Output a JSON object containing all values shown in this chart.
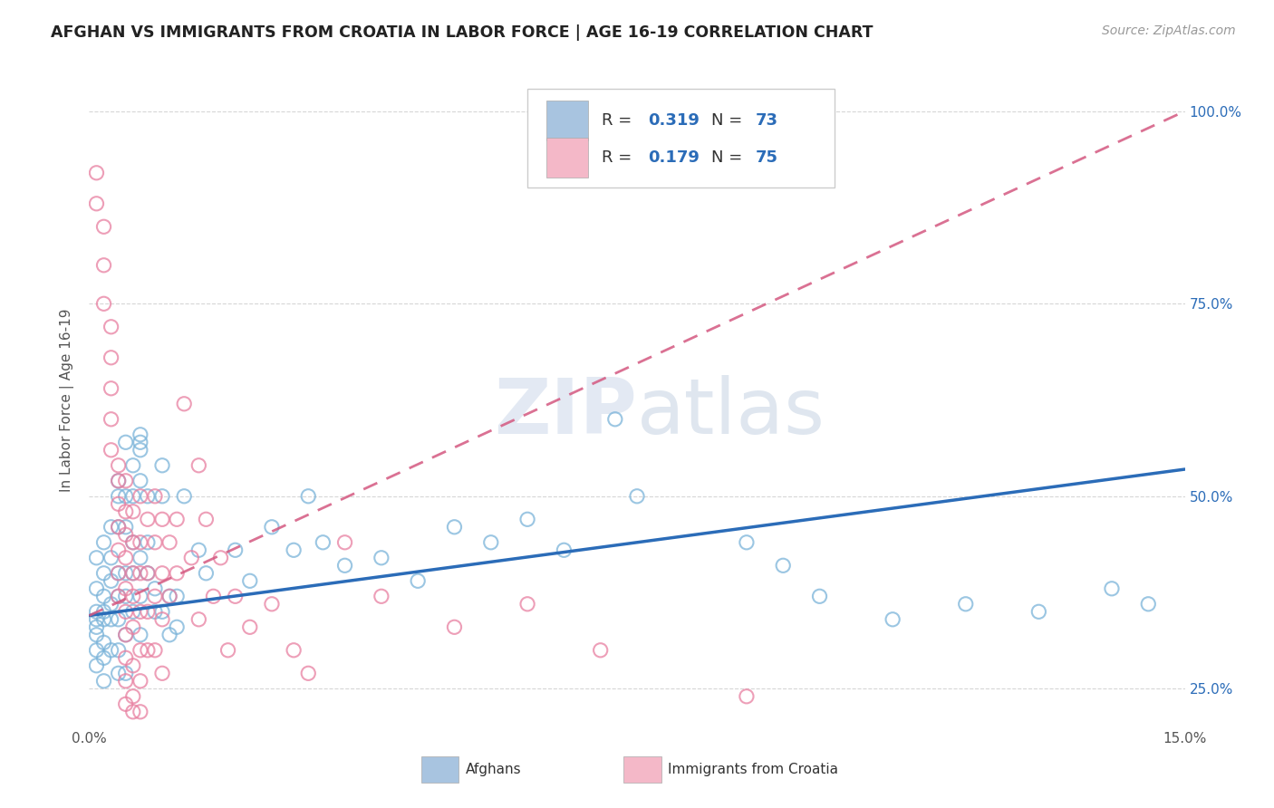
{
  "title": "AFGHAN VS IMMIGRANTS FROM CROATIA IN LABOR FORCE | AGE 16-19 CORRELATION CHART",
  "source": "Source: ZipAtlas.com",
  "ylabel": "In Labor Force | Age 16-19",
  "xlim": [
    0.0,
    0.15
  ],
  "ylim": [
    0.2,
    1.05
  ],
  "yticks": [
    0.25,
    0.5,
    0.75,
    1.0
  ],
  "ytick_labels_right": [
    "25.0%",
    "50.0%",
    "75.0%",
    "100.0%"
  ],
  "series_afghan": {
    "name": "Afghans",
    "marker_color": "#7ab3d9",
    "line_color": "#2b6cb8",
    "trend_x": [
      0.0,
      0.15
    ],
    "trend_y": [
      0.345,
      0.535
    ]
  },
  "series_croatia": {
    "name": "Immigrants from Croatia",
    "marker_color": "#e87fa0",
    "line_color": "#d45880",
    "trend_x": [
      0.0,
      0.15
    ],
    "trend_y": [
      0.345,
      1.0
    ]
  },
  "legend_box_color_afghan": "#a8c4e0",
  "legend_box_color_croatia": "#f4b8c8",
  "legend_text_color": "#2b6cb8",
  "background_color": "#ffffff",
  "grid_color": "#cccccc",
  "scatter_afghan": [
    [
      0.001,
      0.42
    ],
    [
      0.001,
      0.38
    ],
    [
      0.001,
      0.34
    ],
    [
      0.001,
      0.32
    ],
    [
      0.001,
      0.3
    ],
    [
      0.001,
      0.28
    ],
    [
      0.001,
      0.35
    ],
    [
      0.001,
      0.33
    ],
    [
      0.002,
      0.44
    ],
    [
      0.002,
      0.4
    ],
    [
      0.002,
      0.37
    ],
    [
      0.002,
      0.34
    ],
    [
      0.002,
      0.31
    ],
    [
      0.002,
      0.29
    ],
    [
      0.002,
      0.26
    ],
    [
      0.002,
      0.35
    ],
    [
      0.003,
      0.46
    ],
    [
      0.003,
      0.42
    ],
    [
      0.003,
      0.39
    ],
    [
      0.003,
      0.36
    ],
    [
      0.003,
      0.34
    ],
    [
      0.003,
      0.3
    ],
    [
      0.004,
      0.52
    ],
    [
      0.004,
      0.5
    ],
    [
      0.004,
      0.46
    ],
    [
      0.004,
      0.4
    ],
    [
      0.004,
      0.37
    ],
    [
      0.004,
      0.34
    ],
    [
      0.004,
      0.3
    ],
    [
      0.004,
      0.27
    ],
    [
      0.005,
      0.57
    ],
    [
      0.005,
      0.5
    ],
    [
      0.005,
      0.46
    ],
    [
      0.005,
      0.4
    ],
    [
      0.005,
      0.37
    ],
    [
      0.005,
      0.32
    ],
    [
      0.005,
      0.27
    ],
    [
      0.006,
      0.54
    ],
    [
      0.006,
      0.5
    ],
    [
      0.006,
      0.44
    ],
    [
      0.006,
      0.4
    ],
    [
      0.006,
      0.35
    ],
    [
      0.007,
      0.57
    ],
    [
      0.007,
      0.52
    ],
    [
      0.007,
      0.58
    ],
    [
      0.007,
      0.56
    ],
    [
      0.007,
      0.42
    ],
    [
      0.007,
      0.37
    ],
    [
      0.007,
      0.32
    ],
    [
      0.008,
      0.5
    ],
    [
      0.008,
      0.44
    ],
    [
      0.008,
      0.4
    ],
    [
      0.009,
      0.38
    ],
    [
      0.009,
      0.35
    ],
    [
      0.01,
      0.54
    ],
    [
      0.01,
      0.5
    ],
    [
      0.01,
      0.35
    ],
    [
      0.011,
      0.37
    ],
    [
      0.011,
      0.32
    ],
    [
      0.012,
      0.33
    ],
    [
      0.012,
      0.37
    ],
    [
      0.013,
      0.5
    ],
    [
      0.015,
      0.43
    ],
    [
      0.016,
      0.4
    ],
    [
      0.02,
      0.43
    ],
    [
      0.022,
      0.39
    ],
    [
      0.025,
      0.46
    ],
    [
      0.028,
      0.43
    ],
    [
      0.03,
      0.5
    ],
    [
      0.032,
      0.44
    ],
    [
      0.035,
      0.41
    ],
    [
      0.04,
      0.42
    ],
    [
      0.045,
      0.39
    ],
    [
      0.05,
      0.46
    ],
    [
      0.055,
      0.44
    ],
    [
      0.06,
      0.47
    ],
    [
      0.065,
      0.43
    ],
    [
      0.072,
      0.6
    ],
    [
      0.075,
      0.5
    ],
    [
      0.09,
      0.44
    ],
    [
      0.095,
      0.41
    ],
    [
      0.1,
      0.37
    ],
    [
      0.11,
      0.34
    ],
    [
      0.12,
      0.36
    ],
    [
      0.13,
      0.35
    ],
    [
      0.14,
      0.38
    ],
    [
      0.145,
      0.36
    ]
  ],
  "scatter_croatia": [
    [
      0.001,
      0.92
    ],
    [
      0.001,
      0.88
    ],
    [
      0.002,
      0.85
    ],
    [
      0.002,
      0.8
    ],
    [
      0.002,
      0.75
    ],
    [
      0.003,
      0.72
    ],
    [
      0.003,
      0.68
    ],
    [
      0.003,
      0.64
    ],
    [
      0.003,
      0.6
    ],
    [
      0.003,
      0.56
    ],
    [
      0.004,
      0.54
    ],
    [
      0.004,
      0.52
    ],
    [
      0.004,
      0.49
    ],
    [
      0.004,
      0.46
    ],
    [
      0.004,
      0.43
    ],
    [
      0.004,
      0.4
    ],
    [
      0.004,
      0.37
    ],
    [
      0.005,
      0.52
    ],
    [
      0.005,
      0.48
    ],
    [
      0.005,
      0.45
    ],
    [
      0.005,
      0.42
    ],
    [
      0.005,
      0.38
    ],
    [
      0.005,
      0.35
    ],
    [
      0.005,
      0.32
    ],
    [
      0.005,
      0.29
    ],
    [
      0.005,
      0.26
    ],
    [
      0.005,
      0.23
    ],
    [
      0.006,
      0.48
    ],
    [
      0.006,
      0.44
    ],
    [
      0.006,
      0.4
    ],
    [
      0.006,
      0.37
    ],
    [
      0.006,
      0.33
    ],
    [
      0.006,
      0.28
    ],
    [
      0.006,
      0.24
    ],
    [
      0.006,
      0.22
    ],
    [
      0.007,
      0.5
    ],
    [
      0.007,
      0.44
    ],
    [
      0.007,
      0.4
    ],
    [
      0.007,
      0.35
    ],
    [
      0.007,
      0.3
    ],
    [
      0.007,
      0.26
    ],
    [
      0.007,
      0.22
    ],
    [
      0.008,
      0.47
    ],
    [
      0.008,
      0.4
    ],
    [
      0.008,
      0.35
    ],
    [
      0.008,
      0.3
    ],
    [
      0.009,
      0.5
    ],
    [
      0.009,
      0.44
    ],
    [
      0.009,
      0.37
    ],
    [
      0.009,
      0.3
    ],
    [
      0.01,
      0.47
    ],
    [
      0.01,
      0.4
    ],
    [
      0.01,
      0.34
    ],
    [
      0.01,
      0.27
    ],
    [
      0.011,
      0.44
    ],
    [
      0.011,
      0.37
    ],
    [
      0.012,
      0.47
    ],
    [
      0.012,
      0.4
    ],
    [
      0.013,
      0.62
    ],
    [
      0.014,
      0.42
    ],
    [
      0.015,
      0.54
    ],
    [
      0.015,
      0.34
    ],
    [
      0.016,
      0.47
    ],
    [
      0.017,
      0.37
    ],
    [
      0.018,
      0.42
    ],
    [
      0.019,
      0.3
    ],
    [
      0.02,
      0.37
    ],
    [
      0.022,
      0.33
    ],
    [
      0.025,
      0.36
    ],
    [
      0.028,
      0.3
    ],
    [
      0.03,
      0.27
    ],
    [
      0.035,
      0.44
    ],
    [
      0.04,
      0.37
    ],
    [
      0.05,
      0.33
    ],
    [
      0.06,
      0.36
    ],
    [
      0.07,
      0.3
    ],
    [
      0.09,
      0.24
    ]
  ]
}
